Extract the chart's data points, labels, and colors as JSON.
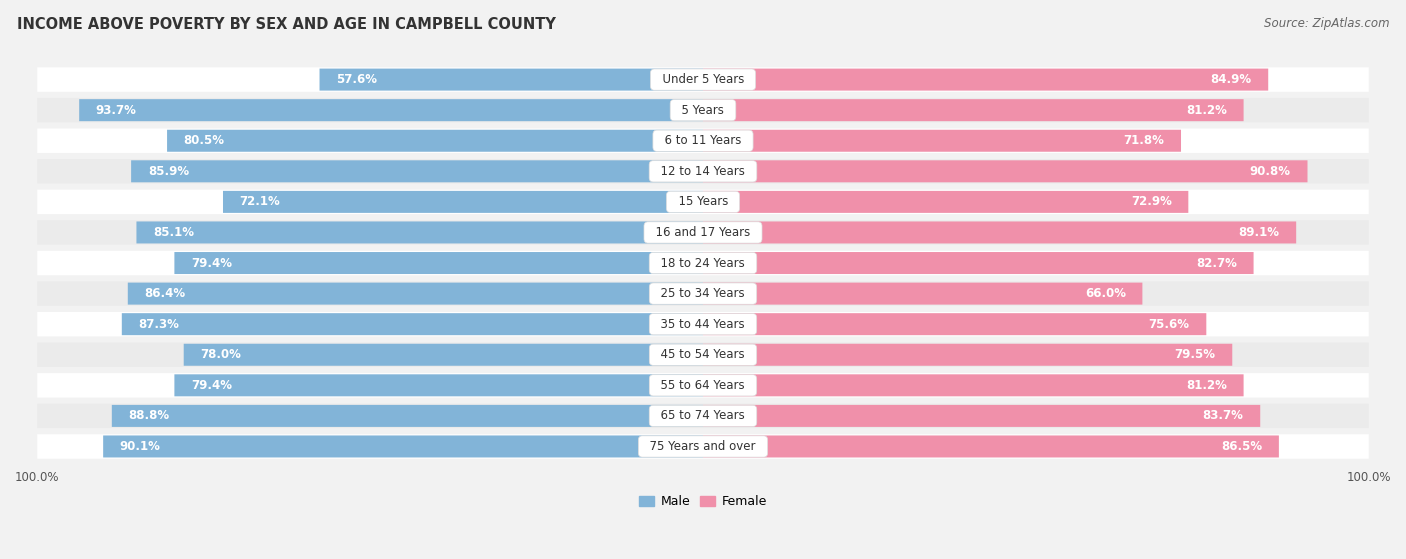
{
  "title": "INCOME ABOVE POVERTY BY SEX AND AGE IN CAMPBELL COUNTY",
  "source": "Source: ZipAtlas.com",
  "categories": [
    "Under 5 Years",
    "5 Years",
    "6 to 11 Years",
    "12 to 14 Years",
    "15 Years",
    "16 and 17 Years",
    "18 to 24 Years",
    "25 to 34 Years",
    "35 to 44 Years",
    "45 to 54 Years",
    "55 to 64 Years",
    "65 to 74 Years",
    "75 Years and over"
  ],
  "male_values": [
    57.6,
    93.7,
    80.5,
    85.9,
    72.1,
    85.1,
    79.4,
    86.4,
    87.3,
    78.0,
    79.4,
    88.8,
    90.1
  ],
  "female_values": [
    84.9,
    81.2,
    71.8,
    90.8,
    72.9,
    89.1,
    82.7,
    66.0,
    75.6,
    79.5,
    81.2,
    83.7,
    86.5
  ],
  "male_color": "#82b4d8",
  "female_color": "#f090aa",
  "male_label": "Male",
  "female_label": "Female",
  "background_color": "#f2f2f2",
  "row_colors": [
    "#ffffff",
    "#ebebeb"
  ],
  "axis_limit": 100.0,
  "title_fontsize": 10.5,
  "source_fontsize": 8.5,
  "tick_fontsize": 8.5,
  "value_fontsize": 8.5,
  "legend_fontsize": 9,
  "category_fontsize": 8.5
}
